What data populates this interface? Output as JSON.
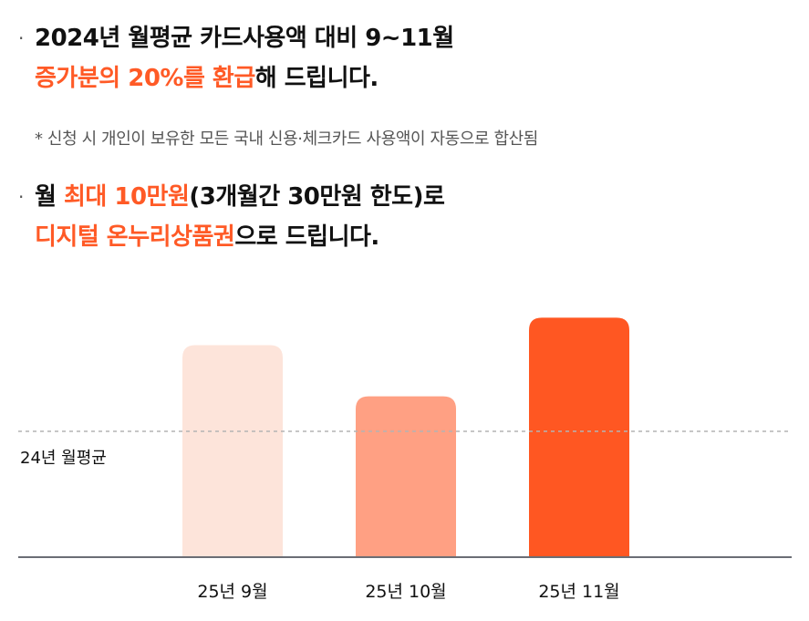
{
  "point1": {
    "line1": "2024년 월평균 카드사용액 대비 9~11월",
    "line2_highlight": "증가분의 20%를 환급",
    "line2_rest": "해 드립니다."
  },
  "note": "* 신청 시 개인이 보유한 모든 국내 신용·체크카드 사용액이 자동으로 합산됨",
  "point2": {
    "line1_a": "월 ",
    "line1_highlight": "최대 10만원",
    "line1_rest": "(3개월간 30만원 한도)로",
    "line2_highlight": "디지털 온누리상품권",
    "line2_rest": "으로 드립니다."
  },
  "bullet": "·",
  "colors": {
    "accent": "#ff5a26",
    "bar_sep": "#fde4da",
    "bar_oct": "#ffa083",
    "bar_nov": "#ff5722",
    "axis": "#6b6e75",
    "avg_line": "#b3b3b3"
  },
  "chart_data": {
    "type": "bar",
    "categories": [
      "25년 9월",
      "25년 10월",
      "25년 11월"
    ],
    "values": [
      1.69,
      1.28,
      1.91
    ],
    "reference_line": {
      "label": "24년 월평균",
      "value": 1.0,
      "style": "dashed"
    },
    "ylim": [
      0,
      2.0
    ],
    "grid": false,
    "axis_values_shown": false
  }
}
